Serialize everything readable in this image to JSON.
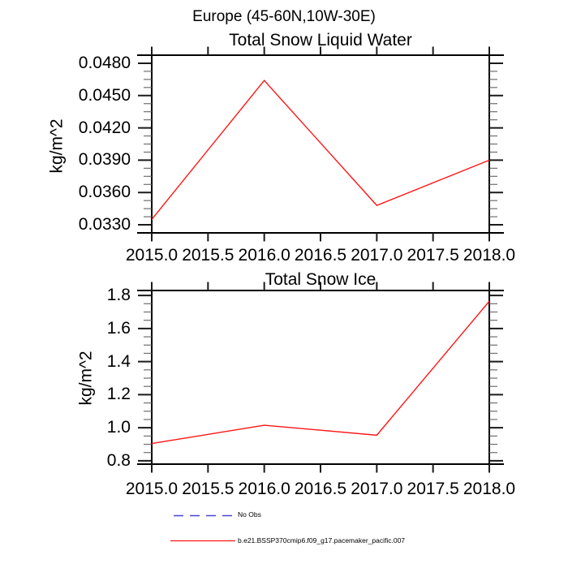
{
  "suptitle": "Europe (45-60N,10W-30E)",
  "chart_data": [
    {
      "type": "line",
      "title": "Total Snow Liquid Water",
      "ylabel": "kg/m^2",
      "x": [
        2015.0,
        2016.0,
        2017.0,
        2018.0
      ],
      "values": [
        0.0335,
        0.0464,
        0.0348,
        0.039
      ],
      "series_name": "b.e21.BSSP370cmip6.f09_g17.pacemaker_pacific.007",
      "line_color": "#ff1414",
      "xlim": [
        2015.0,
        2018.0
      ],
      "ylim": [
        0.03225,
        0.04875
      ],
      "x_ticks": [
        2015.0,
        2015.5,
        2016.0,
        2016.5,
        2017.0,
        2017.5,
        2018.0
      ],
      "x_tick_labels": [
        "2015.0",
        "2015.5",
        "2016.0",
        "2016.5",
        "2017.0",
        "2017.5",
        "2018.0"
      ],
      "y_ticks": [
        0.033,
        0.036,
        0.039,
        0.042,
        0.045,
        0.048
      ],
      "y_tick_labels": [
        "0.0330",
        "0.0360",
        "0.0390",
        "0.0420",
        "0.0450",
        "0.0480"
      ],
      "y_minor_step": 0.00075,
      "grid": false,
      "legend_position": "below"
    },
    {
      "type": "line",
      "title": "Total Snow Ice",
      "ylabel": "kg/m^2",
      "x": [
        2015.0,
        2016.0,
        2017.0,
        2018.0
      ],
      "values": [
        0.905,
        1.015,
        0.955,
        1.765
      ],
      "series_name": "b.e21.BSSP370cmip6.f09_g17.pacemaker_pacific.007",
      "line_color": "#ff1414",
      "xlim": [
        2015.0,
        2018.0
      ],
      "ylim": [
        0.78,
        1.83
      ],
      "x_ticks": [
        2015.0,
        2015.5,
        2016.0,
        2016.5,
        2017.0,
        2017.5,
        2018.0
      ],
      "x_tick_labels": [
        "2015.0",
        "2015.5",
        "2016.0",
        "2016.5",
        "2017.0",
        "2017.5",
        "2018.0"
      ],
      "y_ticks": [
        0.8,
        1.0,
        1.2,
        1.4,
        1.6,
        1.8
      ],
      "y_tick_labels": [
        "0.8",
        "1.0",
        "1.2",
        "1.4",
        "1.6",
        "1.8"
      ],
      "y_minor_step": 0.05,
      "grid": false,
      "legend_position": "below"
    }
  ],
  "legend": {
    "items": [
      {
        "label": "No Obs",
        "line_style": "dashed",
        "color": "#4747cf"
      },
      {
        "label": "b.e21.BSSP370cmip6.f09_g17.pacemaker_pacific.007",
        "line_style": "solid",
        "color": "#ff1414"
      }
    ]
  }
}
